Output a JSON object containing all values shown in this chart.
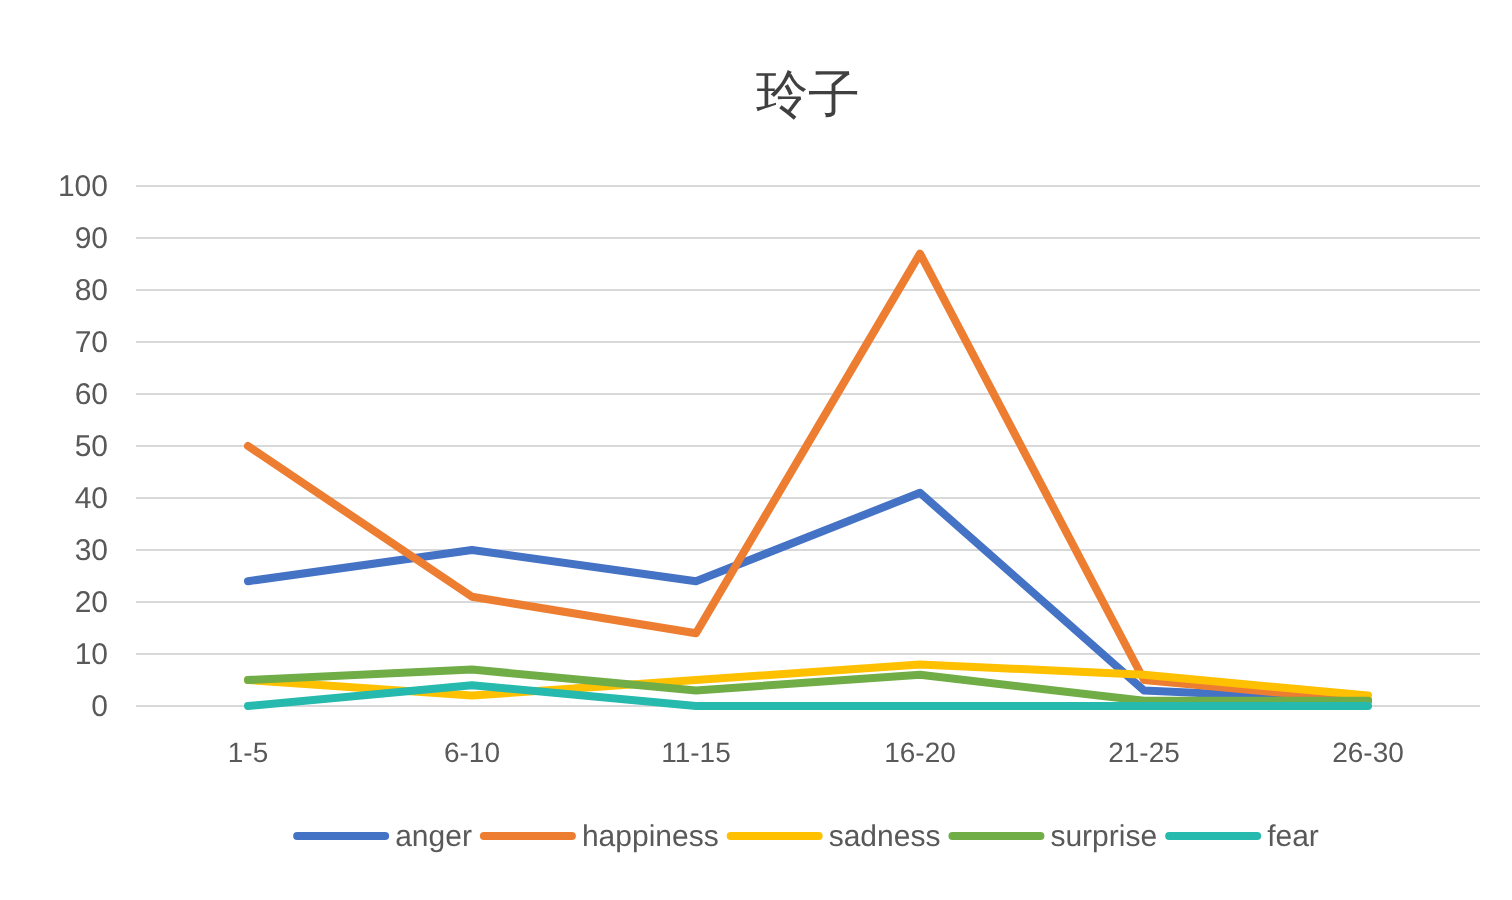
{
  "chart_data": {
    "type": "line",
    "title": "玲子",
    "categories": [
      "1-5",
      "6-10",
      "11-15",
      "16-20",
      "21-25",
      "26-30"
    ],
    "series": [
      {
        "name": "anger",
        "color": "#4472c4",
        "values": [
          24,
          30,
          24,
          41,
          3,
          1
        ]
      },
      {
        "name": "happiness",
        "color": "#ed7d31",
        "values": [
          50,
          21,
          14,
          87,
          5,
          1
        ]
      },
      {
        "name": "sadness",
        "color": "#ffc000",
        "values": [
          5,
          2,
          5,
          8,
          6,
          2
        ]
      },
      {
        "name": "surprise",
        "color": "#70ad47",
        "values": [
          5,
          7,
          3,
          6,
          1,
          1
        ]
      },
      {
        "name": "fear",
        "color": "#26b9ad",
        "values": [
          0,
          4,
          0,
          0,
          0,
          0
        ]
      }
    ],
    "ylim": [
      0,
      100
    ],
    "yticks": [
      0,
      10,
      20,
      30,
      40,
      50,
      60,
      70,
      80,
      90,
      100
    ],
    "grid": "y",
    "legend": "bottom",
    "marker": "none",
    "line_style": "solid"
  }
}
